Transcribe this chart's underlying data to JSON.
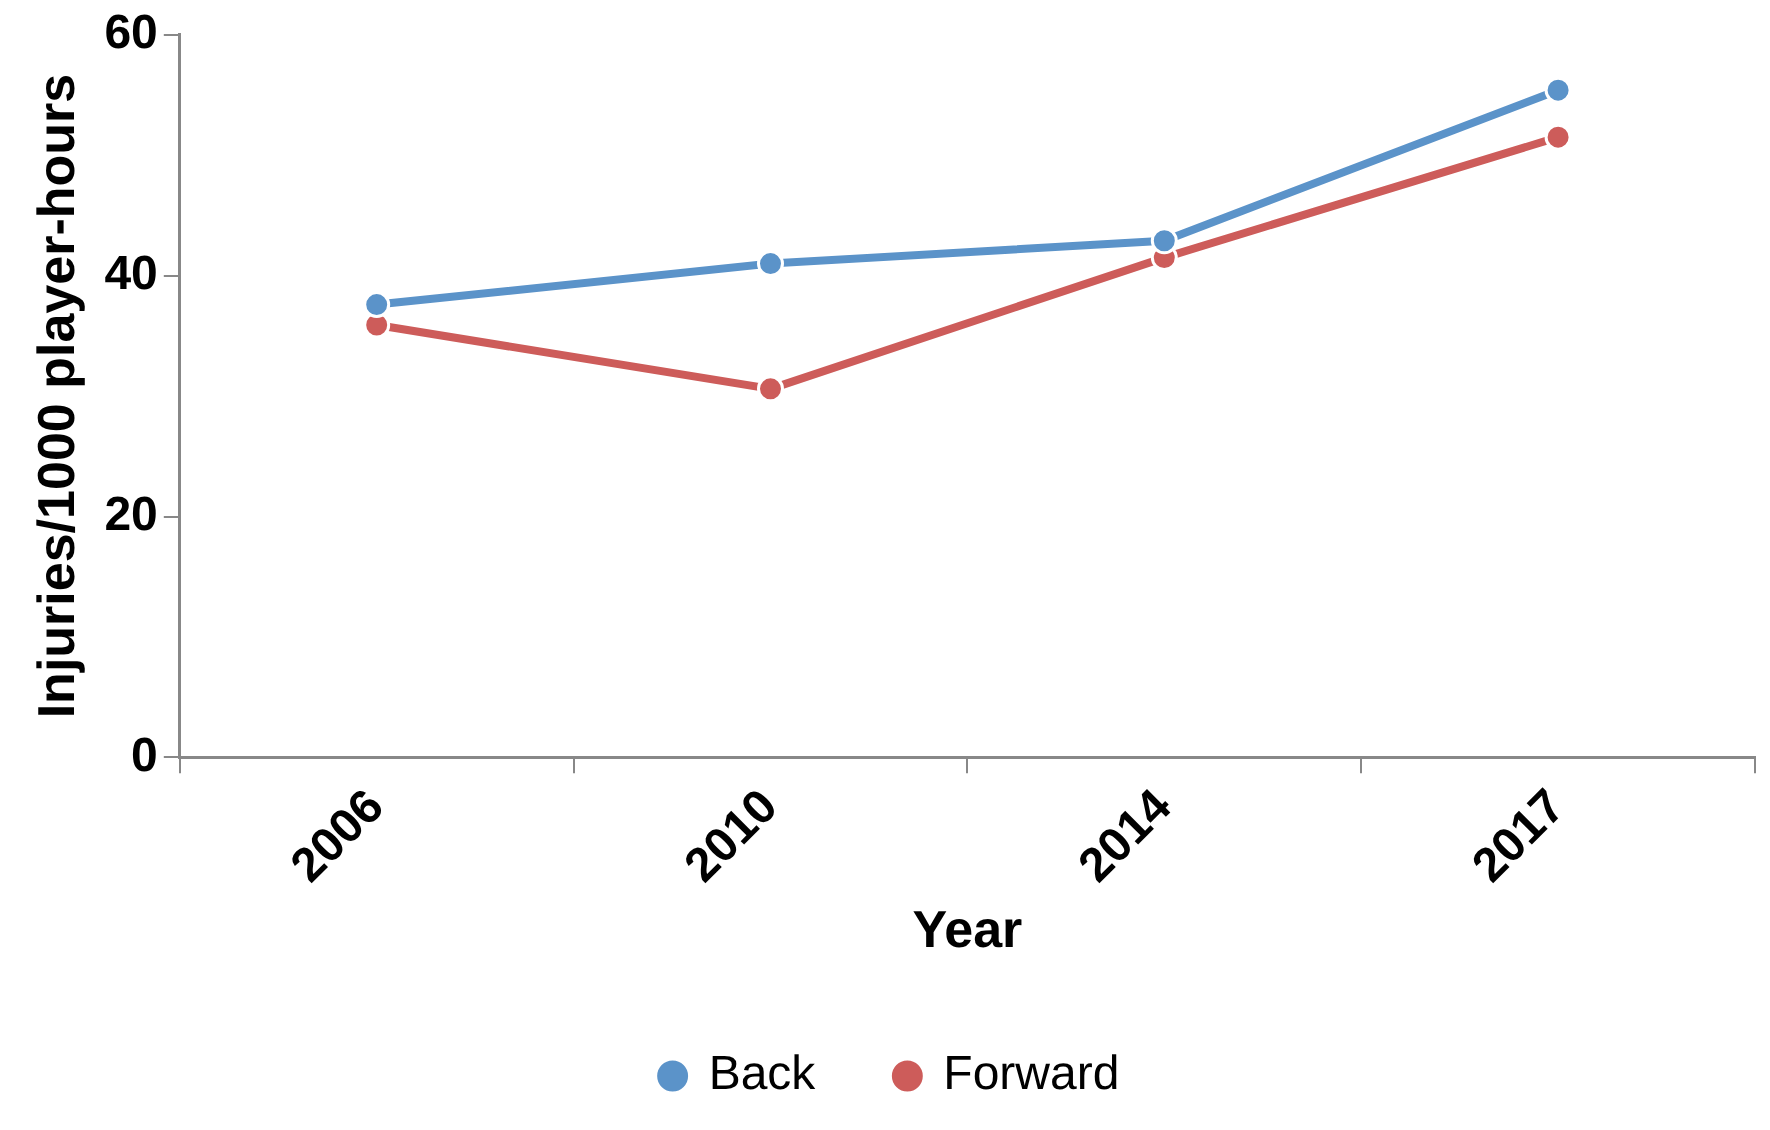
{
  "chart_data": {
    "type": "line",
    "xlabel": "Year",
    "ylabel": "Injuries/1000 player-hours",
    "categories": [
      "2006",
      "2010",
      "2014",
      "2017"
    ],
    "series": [
      {
        "name": "Back",
        "color": "#5b93c9",
        "values": [
          37.6,
          41.0,
          42.9,
          55.4
        ]
      },
      {
        "name": "Forward",
        "color": "#cd5c5a",
        "values": [
          35.9,
          30.6,
          41.5,
          51.5
        ]
      }
    ],
    "ylim": [
      0,
      60
    ],
    "yticks": [
      0,
      20,
      40,
      60
    ],
    "grid": false,
    "legend": "bottom",
    "marker": "circle",
    "line_style": "solid"
  }
}
